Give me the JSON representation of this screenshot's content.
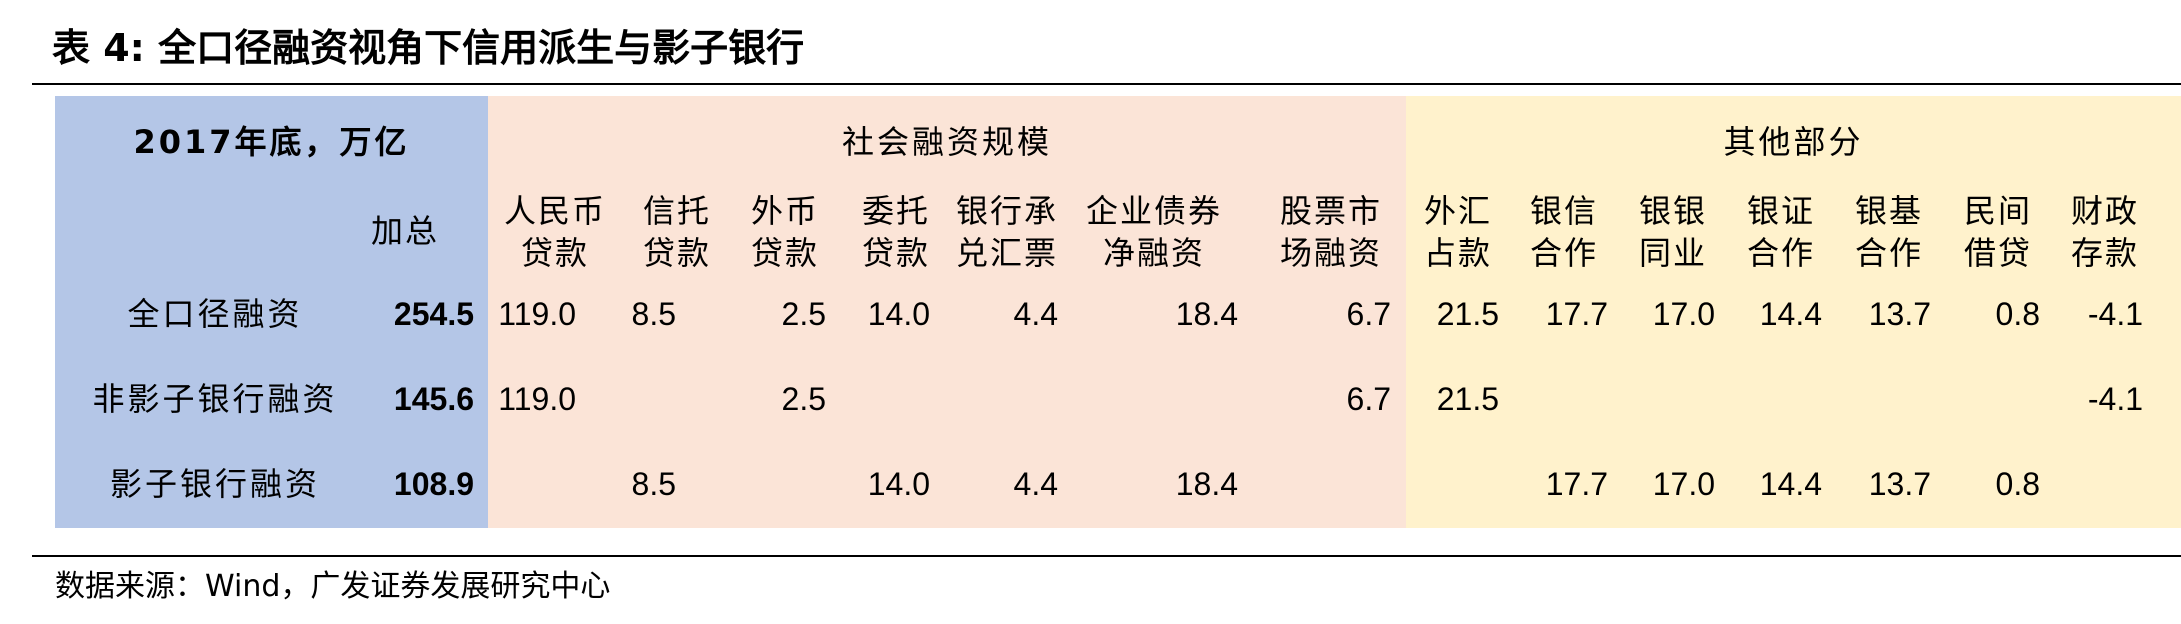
{
  "title": "表 4:  全口径融资视角下信用派生与影子银行",
  "source": "数据来源：Wind，广发证券发展研究中心",
  "header": {
    "corner": "2017年底，万亿",
    "groups": {
      "social": "社会融资规模",
      "other": "其他部分"
    },
    "columns": [
      {
        "l1": "加总",
        "l2": ""
      },
      {
        "l1": "人民币",
        "l2": "贷款"
      },
      {
        "l1": "信托",
        "l2": "贷款"
      },
      {
        "l1": "外币",
        "l2": "贷款"
      },
      {
        "l1": "委托",
        "l2": "贷款"
      },
      {
        "l1": "银行承",
        "l2": "兑汇票"
      },
      {
        "l1": "企业债券",
        "l2": "净融资"
      },
      {
        "l1": "股票市",
        "l2": "场融资"
      },
      {
        "l1": "外汇",
        "l2": "占款"
      },
      {
        "l1": "银信",
        "l2": "合作"
      },
      {
        "l1": "银银",
        "l2": "同业"
      },
      {
        "l1": "银证",
        "l2": "合作"
      },
      {
        "l1": "银基",
        "l2": "合作"
      },
      {
        "l1": "民间",
        "l2": "借贷"
      },
      {
        "l1": "财政",
        "l2": "存款"
      }
    ]
  },
  "rows": [
    {
      "label": "全口径融资",
      "values": [
        "254.5",
        "119.0",
        "8.5",
        "2.5",
        "14.0",
        "4.4",
        "18.4",
        "6.7",
        "21.5",
        "17.7",
        "17.0",
        "14.4",
        "13.7",
        "0.8",
        "-4.1"
      ]
    },
    {
      "label": "非影子银行融资",
      "values": [
        "145.6",
        "119.0",
        "",
        "2.5",
        "",
        "",
        "",
        "6.7",
        "21.5",
        "",
        "",
        "",
        "",
        "",
        "-4.1"
      ]
    },
    {
      "label": "影子银行融资",
      "values": [
        "108.9",
        "",
        "8.5",
        "",
        "14.0",
        "4.4",
        "18.4",
        "",
        "",
        "17.7",
        "17.0",
        "14.4",
        "13.7",
        "0.8",
        ""
      ]
    }
  ],
  "colors": {
    "blue": "#b4c6e7",
    "pink": "#fbe4d7",
    "yellow": "#fff2cc"
  }
}
